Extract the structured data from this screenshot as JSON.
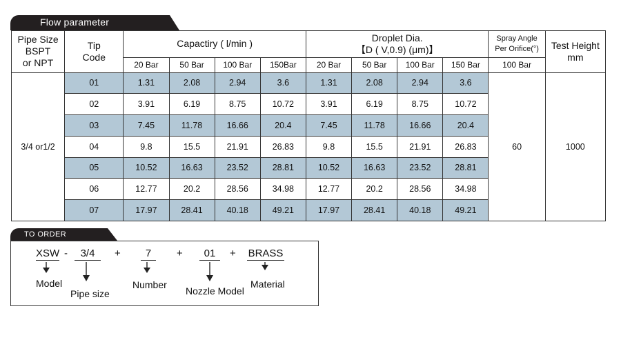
{
  "flow_tab": "Flow parameter",
  "headers": {
    "pipe_size": [
      "Pipe Size",
      "BSPT",
      "or NPT"
    ],
    "tip_code": [
      "Tip",
      "Code"
    ],
    "capacity": "Capactiry ( l/min )",
    "droplet": [
      "Droplet Dia.",
      "【D ( V,0.9) (μm)】"
    ],
    "spray_angle": [
      "Spray Angle",
      "Per Orifice(°)"
    ],
    "test_height": [
      "Test Height",
      "mm"
    ]
  },
  "pressures": [
    "20 Bar",
    "50 Bar",
    "100 Bar",
    "150Bar",
    "20 Bar",
    "50 Bar",
    "100 Bar",
    "150 Bar",
    "100 Bar"
  ],
  "pipe_size_value": "3/4 or1/2",
  "spray_angle_value": "60",
  "test_height_value": "1000",
  "rows": [
    {
      "code": "01",
      "vals": [
        "1.31",
        "2.08",
        "2.94",
        "3.6",
        "1.31",
        "2.08",
        "2.94",
        "3.6"
      ]
    },
    {
      "code": "02",
      "vals": [
        "3.91",
        "6.19",
        "8.75",
        "10.72",
        "3.91",
        "6.19",
        "8.75",
        "10.72"
      ]
    },
    {
      "code": "03",
      "vals": [
        "7.45",
        "11.78",
        "16.66",
        "20.4",
        "7.45",
        "11.78",
        "16.66",
        "20.4"
      ]
    },
    {
      "code": "04",
      "vals": [
        "9.8",
        "15.5",
        "21.91",
        "26.83",
        "9.8",
        "15.5",
        "21.91",
        "26.83"
      ]
    },
    {
      "code": "05",
      "vals": [
        "10.52",
        "16.63",
        "23.52",
        "28.81",
        "10.52",
        "16.63",
        "23.52",
        "28.81"
      ]
    },
    {
      "code": "06",
      "vals": [
        "12.77",
        "20.2",
        "28.56",
        "34.98",
        "12.77",
        "20.2",
        "28.56",
        "34.98"
      ]
    },
    {
      "code": "07",
      "vals": [
        "17.97",
        "28.41",
        "40.18",
        "49.21",
        "17.97",
        "28.41",
        "40.18",
        "49.21"
      ]
    }
  ],
  "order": {
    "tab": "TO ORDER",
    "model_code": "XSW",
    "dash": "-",
    "pipe_code": "3/4",
    "number_code": "7",
    "nozzle_code": "01",
    "material_code": "BRASS",
    "plus": "+",
    "labels": {
      "model": "Model",
      "pipe": "Pipe size",
      "number": "Number",
      "nozzle": "Nozzle Model",
      "material": "Material"
    }
  },
  "colors": {
    "shade": "#b3c8d6",
    "tab_bg": "#231f20"
  }
}
